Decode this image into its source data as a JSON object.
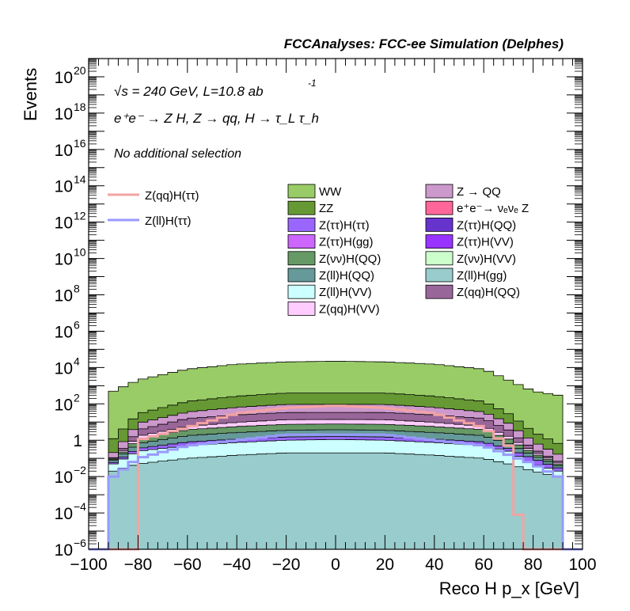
{
  "chart_data": {
    "type": "histogram-stacked",
    "title": "FCCAnalyses: FCC-ee Simulation (Delphes)",
    "xlabel": "Reco H p_x [GeV]",
    "ylabel": "Events",
    "xlim": [
      -100,
      100
    ],
    "ylim": [
      1e-06,
      1e+21
    ],
    "yscale": "log",
    "x_ticks": [
      "−100",
      "−80",
      "−60",
      "−40",
      "−20",
      "0",
      "20",
      "40",
      "60",
      "80",
      "100"
    ],
    "y_ticks": [
      {
        "base": "10",
        "exp": "−6"
      },
      {
        "base": "10",
        "exp": "−4"
      },
      {
        "base": "10",
        "exp": "−2"
      },
      {
        "base": "1",
        "exp": ""
      },
      {
        "base": "10",
        "exp": "2"
      },
      {
        "base": "10",
        "exp": "4"
      },
      {
        "base": "10",
        "exp": "6"
      },
      {
        "base": "10",
        "exp": "8"
      },
      {
        "base": "10",
        "exp": "10"
      },
      {
        "base": "10",
        "exp": "12"
      },
      {
        "base": "10",
        "exp": "14"
      },
      {
        "base": "10",
        "exp": "16"
      },
      {
        "base": "10",
        "exp": "18"
      },
      {
        "base": "10",
        "exp": "20"
      }
    ],
    "annotations": {
      "energy": "√s = 240 GeV, L=10.8 ab",
      "energy_exp": "-1",
      "process": "e⁺e⁻ → Z H, Z → qq, H → τ_L τ_h",
      "selection": "No additional selection"
    },
    "line_legend": [
      {
        "label": "Z(qq)H(ττ)",
        "color": "#f4a3a3"
      },
      {
        "label": "Z(ll)H(ττ)",
        "color": "#9999ff"
      }
    ],
    "fill_legend": [
      {
        "label": "WW",
        "color": "#99cc66"
      },
      {
        "label": "Z → QQ",
        "color": "#cc99cc"
      },
      {
        "label": "ZZ",
        "color": "#669933"
      },
      {
        "label": "e⁺e⁻→ νₑνₑ Z",
        "color": "#ff6699"
      },
      {
        "label": "Z(ττ)H(ττ)",
        "color": "#9966ff"
      },
      {
        "label": "Z(ττ)H(QQ)",
        "color": "#6633cc"
      },
      {
        "label": "Z(ττ)H(gg)",
        "color": "#cc66ff"
      },
      {
        "label": "Z(ττ)H(VV)",
        "color": "#9933ff"
      },
      {
        "label": "Z(νν)H(QQ)",
        "color": "#669966"
      },
      {
        "label": "Z(νν)H(VV)",
        "color": "#ccffcc"
      },
      {
        "label": "Z(ll)H(QQ)",
        "color": "#669999"
      },
      {
        "label": "Z(ll)H(gg)",
        "color": "#99cccc"
      },
      {
        "label": "Z(ll)H(VV)",
        "color": "#ccffff"
      },
      {
        "label": "Z(qq)H(QQ)",
        "color": "#996699"
      },
      {
        "label": "Z(qq)H(VV)",
        "color": "#ffccff"
      }
    ],
    "bin_edges_step": 4,
    "series": [
      {
        "name": "Z(ll)H(gg)",
        "color": "#99cccc",
        "x": [
          -90,
          -80,
          -60,
          -40,
          -20,
          0,
          20,
          40,
          60,
          70,
          80,
          90
        ],
        "values": [
          0.02,
          0.05,
          0.1,
          0.15,
          0.2,
          0.2,
          0.2,
          0.15,
          0.1,
          0.05,
          0.02,
          0.01
        ]
      },
      {
        "name": "Z(ll)H(VV)",
        "color": "#ccffff",
        "x": [
          -90,
          -80,
          -60,
          -40,
          -20,
          0,
          20,
          40,
          60,
          70,
          80,
          90
        ],
        "values": [
          0.03,
          0.2,
          0.4,
          0.6,
          0.8,
          0.9,
          0.8,
          0.6,
          0.4,
          0.2,
          0.03,
          0.01
        ]
      },
      {
        "name": "Z(ττ)H(ττ)",
        "color": "#9966ff",
        "x": [
          -90,
          -80,
          -60,
          -40,
          -20,
          0,
          20,
          40,
          60,
          70,
          80,
          90
        ],
        "values": [
          0.01,
          0.1,
          0.3,
          0.4,
          0.5,
          0.5,
          0.5,
          0.4,
          0.3,
          0.1,
          0.05,
          0.01
        ]
      },
      {
        "name": "Z(ll)H(QQ)",
        "color": "#669999",
        "x": [
          -90,
          -80,
          -60,
          -40,
          -20,
          0,
          20,
          40,
          60,
          70,
          80,
          90
        ],
        "values": [
          0.02,
          0.3,
          1,
          1.5,
          2,
          2.2,
          2,
          1.5,
          1,
          0.3,
          0.05,
          0.01
        ]
      },
      {
        "name": "Z(νν)H(QQ)",
        "color": "#669966",
        "x": [
          -90,
          -80,
          -60,
          -40,
          -20,
          0,
          20,
          40,
          60,
          70,
          80,
          90
        ],
        "values": [
          0.01,
          0.5,
          2,
          3,
          4,
          4,
          4,
          3,
          2,
          0.5,
          0.05,
          0.01
        ]
      },
      {
        "name": "Z(qq)H(VV)",
        "color": "#ffccff",
        "x": [
          -90,
          -80,
          -60,
          -40,
          -20,
          0,
          20,
          40,
          60,
          70,
          80,
          90
        ],
        "values": [
          0.01,
          0.5,
          2,
          4,
          6,
          6,
          6,
          4,
          2,
          0.5,
          0.05,
          0.01
        ]
      },
      {
        "name": "Z(qq)H(QQ)",
        "color": "#996699",
        "x": [
          -90,
          -80,
          -60,
          -40,
          -20,
          0,
          20,
          40,
          60,
          70,
          80,
          90
        ],
        "values": [
          0.01,
          2,
          10,
          15,
          20,
          20,
          20,
          15,
          10,
          2,
          0.1,
          0.01
        ]
      },
      {
        "name": "Z → QQ",
        "color": "#cc99cc",
        "x": [
          -90,
          -80,
          -60,
          -40,
          -20,
          0,
          20,
          40,
          60,
          70,
          80,
          90
        ],
        "values": [
          0.1,
          5,
          20,
          40,
          60,
          60,
          60,
          40,
          20,
          5,
          0.5,
          0.1
        ]
      },
      {
        "name": "ZZ",
        "color": "#669933",
        "x": [
          -90,
          -80,
          -60,
          -40,
          -20,
          0,
          20,
          40,
          60,
          70,
          80,
          90
        ],
        "values": [
          1,
          20,
          100,
          200,
          300,
          300,
          300,
          200,
          100,
          20,
          2,
          0.5
        ]
      },
      {
        "name": "WW",
        "color": "#99cc66",
        "x": [
          -90,
          -80,
          -60,
          -40,
          -20,
          0,
          20,
          40,
          60,
          70,
          80,
          90
        ],
        "values": [
          500,
          2000,
          8000,
          15000,
          20000,
          22000,
          20000,
          15000,
          8000,
          2000,
          500,
          300
        ]
      }
    ],
    "lines": [
      {
        "name": "Z(qq)H(ττ)",
        "color": "#f4a3a3",
        "x": [
          -80,
          -60,
          -40,
          -20,
          0,
          20,
          40,
          60,
          70,
          76
        ],
        "values": [
          1,
          5,
          30,
          60,
          80,
          60,
          30,
          5,
          0.5,
          1e-06
        ]
      },
      {
        "name": "Z(ll)H(ττ)",
        "color": "#9999ff",
        "x": [
          -90,
          -80,
          -60,
          -40,
          -20,
          0,
          20,
          40,
          60,
          80,
          90
        ],
        "values": [
          0.01,
          0.1,
          0.5,
          1,
          2,
          2,
          2,
          1,
          0.5,
          0.05,
          0.01
        ]
      }
    ],
    "grid": false,
    "legend_position": "inside-right"
  }
}
